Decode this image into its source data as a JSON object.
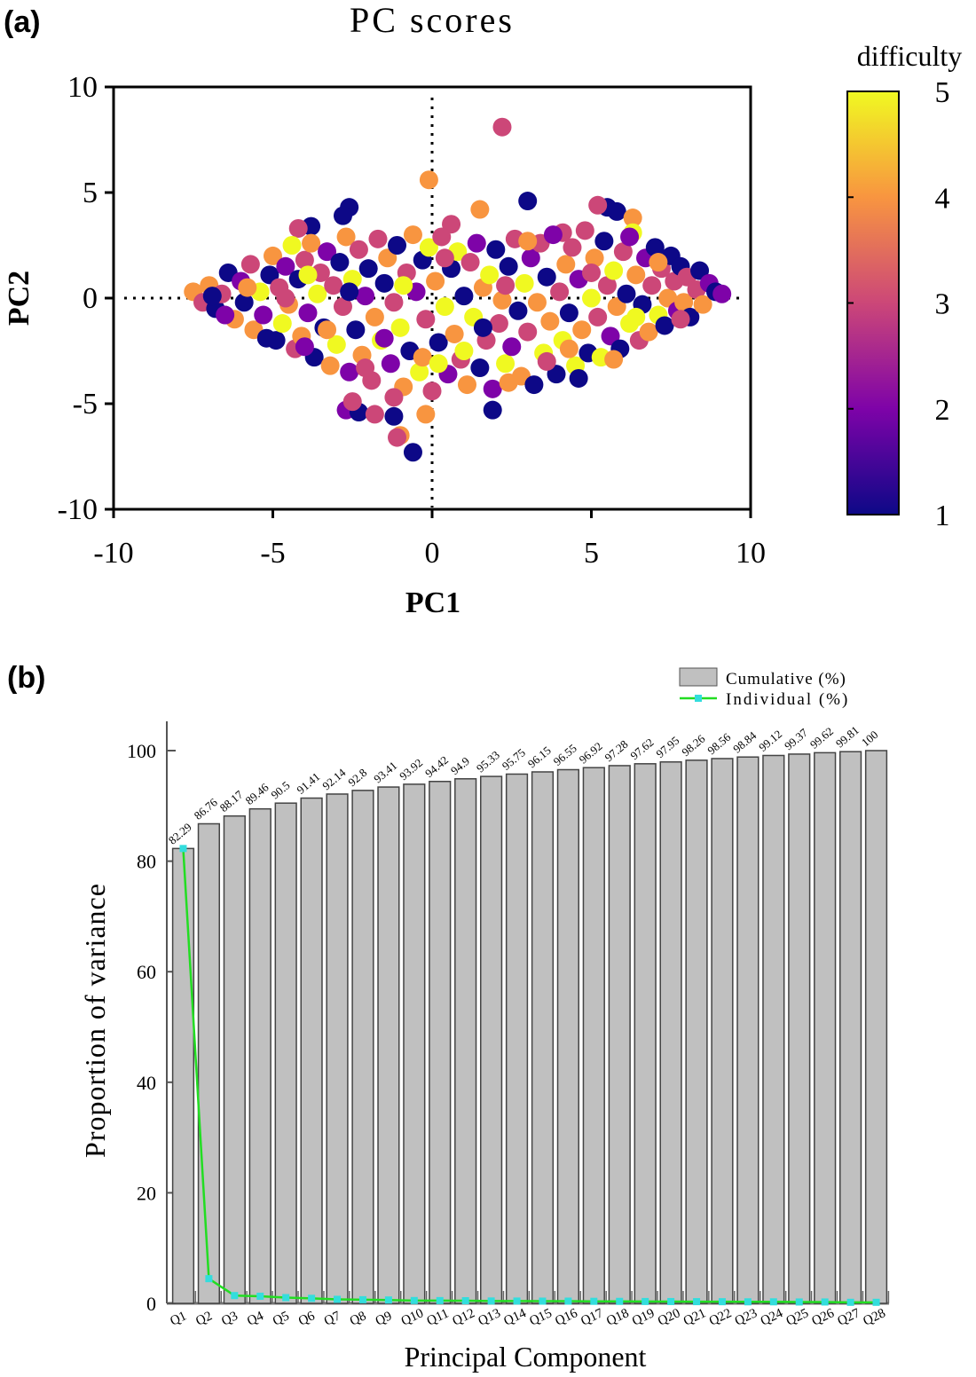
{
  "chart_data": [
    {
      "panel_label": "(a)",
      "type": "scatter",
      "title": "PC scores",
      "xlabel": "PC1",
      "ylabel": "PC2",
      "xlim": [
        -10,
        10
      ],
      "ylim": [
        -10,
        10
      ],
      "xticks": [
        "-10",
        "-5",
        "0",
        "5",
        "10"
      ],
      "yticks": [
        "10",
        "5",
        "0",
        "-5",
        "-10"
      ],
      "colorbar": {
        "label": "difficulty",
        "min": 1,
        "max": 5,
        "ticks": [
          "5",
          "4",
          "3",
          "2",
          "1"
        ],
        "colors": [
          "#0d0887",
          "#7e03a8",
          "#cc4778",
          "#f89540",
          "#f0f921"
        ]
      },
      "grid": false,
      "points": [
        [
          2.2,
          8.1,
          3
        ],
        [
          -0.1,
          5.6,
          4
        ],
        [
          3,
          4.6,
          1
        ],
        [
          -2.6,
          4.3,
          1
        ],
        [
          -2.8,
          3.9,
          1
        ],
        [
          5.5,
          4.3,
          1
        ],
        [
          5.8,
          4.1,
          1
        ],
        [
          6.3,
          3.8,
          4
        ],
        [
          5.2,
          4.4,
          3
        ],
        [
          1.5,
          4.2,
          4
        ],
        [
          0.6,
          3.5,
          3
        ],
        [
          -3.8,
          3.4,
          1
        ],
        [
          -4.2,
          3.3,
          3
        ],
        [
          4.1,
          3.1,
          3
        ],
        [
          -0.6,
          -7.3,
          1
        ],
        [
          -1,
          -6.5,
          4
        ],
        [
          -1.1,
          -6.6,
          3
        ],
        [
          -0.2,
          -5.5,
          4
        ],
        [
          1.9,
          -5.3,
          1
        ],
        [
          -2.7,
          -5.3,
          2
        ],
        [
          -2.3,
          -5.4,
          1
        ],
        [
          -1.8,
          -5.5,
          3
        ],
        [
          -1.2,
          -5.6,
          1
        ],
        [
          -2.5,
          -4.9,
          3
        ],
        [
          -7.5,
          0.3,
          4
        ],
        [
          -7.2,
          -0.2,
          3
        ],
        [
          -7,
          0.6,
          4
        ],
        [
          -6.8,
          -0.5,
          1
        ],
        [
          -6.6,
          0.2,
          3
        ],
        [
          -6.4,
          1.2,
          1
        ],
        [
          -6.2,
          -1,
          4
        ],
        [
          -6,
          0.8,
          2
        ],
        [
          -5.9,
          -0.2,
          1
        ],
        [
          -5.7,
          1.6,
          3
        ],
        [
          -5.6,
          -1.5,
          4
        ],
        [
          -5.4,
          0.3,
          5
        ],
        [
          -5.3,
          -0.8,
          2
        ],
        [
          -5.1,
          1.1,
          1
        ],
        [
          -5,
          2,
          4
        ],
        [
          -4.9,
          -2,
          1
        ],
        [
          -4.8,
          0.5,
          3
        ],
        [
          -4.7,
          -1.2,
          5
        ],
        [
          -4.6,
          1.5,
          2
        ],
        [
          -4.5,
          -0.3,
          4
        ],
        [
          -4.4,
          2.5,
          5
        ],
        [
          -4.3,
          -2.4,
          3
        ],
        [
          -4.2,
          0.9,
          1
        ],
        [
          -4.1,
          -1.8,
          4
        ],
        [
          -4,
          1.8,
          3
        ],
        [
          -3.9,
          -0.7,
          2
        ],
        [
          -3.8,
          2.6,
          4
        ],
        [
          -3.7,
          -2.8,
          1
        ],
        [
          -3.6,
          0.2,
          5
        ],
        [
          -3.5,
          1.2,
          3
        ],
        [
          -3.4,
          -1.4,
          1
        ],
        [
          -3.3,
          2.2,
          2
        ],
        [
          -3.2,
          -3.2,
          4
        ],
        [
          -3.1,
          0.6,
          3
        ],
        [
          -3,
          -2.2,
          5
        ],
        [
          -2.9,
          1.7,
          1
        ],
        [
          -2.8,
          -0.4,
          3
        ],
        [
          -2.7,
          2.9,
          4
        ],
        [
          -2.6,
          -3.5,
          2
        ],
        [
          -2.5,
          0.9,
          5
        ],
        [
          -2.4,
          -1.5,
          1
        ],
        [
          -2.3,
          2.3,
          3
        ],
        [
          -2.2,
          -2.7,
          4
        ],
        [
          -2.1,
          0.1,
          2
        ],
        [
          -2,
          1.4,
          1
        ],
        [
          -1.9,
          -3.9,
          3
        ],
        [
          -1.8,
          -0.9,
          4
        ],
        [
          -1.7,
          2.8,
          3
        ],
        [
          -1.6,
          -2,
          5
        ],
        [
          -1.5,
          0.7,
          1
        ],
        [
          -1.4,
          1.9,
          4
        ],
        [
          -1.3,
          -3.1,
          2
        ],
        [
          -1.2,
          -0.2,
          3
        ],
        [
          -1.1,
          2.5,
          1
        ],
        [
          -1,
          -1.4,
          5
        ],
        [
          -0.9,
          -4.2,
          4
        ],
        [
          -0.8,
          1.2,
          3
        ],
        [
          -0.7,
          -2.5,
          1
        ],
        [
          -0.6,
          3,
          4
        ],
        [
          -0.5,
          0.3,
          2
        ],
        [
          -0.4,
          -3.5,
          5
        ],
        [
          -0.3,
          1.8,
          1
        ],
        [
          -0.2,
          -1,
          3
        ],
        [
          -0.1,
          2.4,
          5
        ],
        [
          0,
          -4.4,
          3
        ],
        [
          0.1,
          0.8,
          4
        ],
        [
          0.2,
          -2.1,
          1
        ],
        [
          0.3,
          2.9,
          3
        ],
        [
          0.4,
          -0.4,
          5
        ],
        [
          0.5,
          -3.6,
          2
        ],
        [
          0.6,
          1.4,
          1
        ],
        [
          0.7,
          -1.7,
          4
        ],
        [
          0.8,
          2.2,
          5
        ],
        [
          0.9,
          -2.9,
          3
        ],
        [
          1,
          0.1,
          1
        ],
        [
          1.1,
          -4.1,
          4
        ],
        [
          1.2,
          1.7,
          3
        ],
        [
          1.3,
          -0.9,
          5
        ],
        [
          1.4,
          2.6,
          2
        ],
        [
          1.5,
          -3.3,
          1
        ],
        [
          1.6,
          0.5,
          4
        ],
        [
          1.7,
          -2,
          3
        ],
        [
          1.8,
          1.1,
          5
        ],
        [
          1.9,
          -4.3,
          2
        ],
        [
          2,
          2.3,
          1
        ],
        [
          2.1,
          -1.2,
          3
        ],
        [
          2.2,
          -0.1,
          4
        ],
        [
          2.3,
          -3.1,
          5
        ],
        [
          2.4,
          1.5,
          1
        ],
        [
          2.5,
          -2.3,
          2
        ],
        [
          2.6,
          2.8,
          3
        ],
        [
          2.7,
          -0.6,
          1
        ],
        [
          2.8,
          -3.7,
          4
        ],
        [
          2.9,
          0.7,
          5
        ],
        [
          3,
          -1.6,
          3
        ],
        [
          3.1,
          1.9,
          2
        ],
        [
          3.2,
          -4.1,
          1
        ],
        [
          3.3,
          -0.2,
          4
        ],
        [
          3.4,
          2.6,
          3
        ],
        [
          3.5,
          -2.6,
          5
        ],
        [
          3.6,
          1,
          1
        ],
        [
          3.7,
          -1.1,
          4
        ],
        [
          3.8,
          3,
          2
        ],
        [
          3.9,
          -3.6,
          1
        ],
        [
          4,
          0.3,
          3
        ],
        [
          4.1,
          -2,
          5
        ],
        [
          4.2,
          1.6,
          4
        ],
        [
          4.3,
          -0.7,
          1
        ],
        [
          4.4,
          2.4,
          3
        ],
        [
          4.5,
          -3.2,
          5
        ],
        [
          4.6,
          0.9,
          2
        ],
        [
          4.7,
          -1.5,
          4
        ],
        [
          4.8,
          3.2,
          3
        ],
        [
          4.9,
          -2.6,
          1
        ],
        [
          5,
          0,
          5
        ],
        [
          5.1,
          1.9,
          4
        ],
        [
          5.2,
          -0.9,
          3
        ],
        [
          5.3,
          -2.8,
          5
        ],
        [
          5.4,
          2.7,
          1
        ],
        [
          5.5,
          0.6,
          3
        ],
        [
          5.6,
          -1.8,
          2
        ],
        [
          5.7,
          1.3,
          5
        ],
        [
          5.8,
          -0.4,
          4
        ],
        [
          5.9,
          -2.4,
          1
        ],
        [
          6,
          2.2,
          3
        ],
        [
          6.1,
          0.2,
          1
        ],
        [
          6.2,
          -1.2,
          5
        ],
        [
          6.3,
          3.1,
          5
        ],
        [
          6.4,
          1.1,
          4
        ],
        [
          6.5,
          -2,
          3
        ],
        [
          6.6,
          -0.3,
          1
        ],
        [
          6.7,
          1.9,
          2
        ],
        [
          6.8,
          -1.6,
          4
        ],
        [
          6.9,
          0.6,
          3
        ],
        [
          7,
          2.4,
          1
        ],
        [
          7.1,
          -0.8,
          5
        ],
        [
          7.2,
          1.4,
          3
        ],
        [
          7.3,
          -1.3,
          1
        ],
        [
          7.4,
          0,
          4
        ],
        [
          7.5,
          2,
          1
        ],
        [
          7.6,
          0.8,
          3
        ],
        [
          7.7,
          -0.6,
          2
        ],
        [
          7.8,
          1.5,
          1
        ],
        [
          7.9,
          -0.2,
          4
        ],
        [
          8,
          1,
          3
        ],
        [
          8.1,
          -0.9,
          1
        ],
        [
          8.3,
          0.4,
          3
        ],
        [
          8.4,
          1.3,
          1
        ],
        [
          8.5,
          -0.3,
          4
        ],
        [
          8.7,
          0.7,
          2
        ],
        [
          8.9,
          0.3,
          1
        ],
        [
          9.1,
          0.2,
          2
        ],
        [
          -6.5,
          -0.8,
          2
        ],
        [
          -5.8,
          0.5,
          4
        ],
        [
          -5.2,
          -1.9,
          1
        ],
        [
          -4.6,
          0,
          3
        ],
        [
          -3.9,
          1.1,
          5
        ],
        [
          -3.3,
          -1.5,
          4
        ],
        [
          -2.6,
          0.3,
          1
        ],
        [
          -2.1,
          -3.3,
          3
        ],
        [
          -1.5,
          -1.9,
          2
        ],
        [
          -0.9,
          0.6,
          5
        ],
        [
          -0.3,
          -2.8,
          4
        ],
        [
          0.4,
          1.9,
          3
        ],
        [
          1,
          -2.5,
          5
        ],
        [
          1.6,
          -1.4,
          1
        ],
        [
          2.3,
          0.6,
          3
        ],
        [
          3,
          2.7,
          4
        ],
        [
          3.6,
          -3,
          3
        ],
        [
          4.3,
          -2.4,
          4
        ],
        [
          5,
          1.2,
          3
        ],
        [
          5.7,
          -2.9,
          4
        ],
        [
          6.4,
          -0.9,
          5
        ],
        [
          7.1,
          1.7,
          4
        ],
        [
          7.8,
          -1,
          3
        ],
        [
          -6.9,
          0.1,
          1
        ],
        [
          -4,
          -2.3,
          2
        ],
        [
          -1.2,
          -4.7,
          3
        ],
        [
          0.2,
          -3.1,
          5
        ],
        [
          2.4,
          -4,
          4
        ],
        [
          4.6,
          -3.8,
          1
        ],
        [
          6.2,
          2.9,
          2
        ]
      ]
    },
    {
      "panel_label": "(b)",
      "type": "bar",
      "xlabel": "Principal Component",
      "ylabel": "Proportion of variance",
      "ylim": [
        0,
        105
      ],
      "yticks": [
        "0",
        "20",
        "40",
        "60",
        "80",
        "100"
      ],
      "categories": [
        "Q1",
        "Q2",
        "Q3",
        "Q4",
        "Q5",
        "Q6",
        "Q7",
        "Q8",
        "Q9",
        "Q10",
        "Q11",
        "Q12",
        "Q13",
        "Q14",
        "Q15",
        "Q16",
        "Q17",
        "Q18",
        "Q19",
        "Q20",
        "Q21",
        "Q22",
        "Q23",
        "Q24",
        "Q25",
        "Q26",
        "Q27",
        "Q28"
      ],
      "legend_position": "top-right",
      "series": [
        {
          "name": "Cumulative (%)",
          "type": "bar",
          "color": "#c0c0c0",
          "values": [
            82.29,
            86.76,
            88.17,
            89.46,
            90.5,
            91.41,
            92.14,
            92.8,
            93.41,
            93.92,
            94.42,
            94.9,
            95.33,
            95.75,
            96.15,
            96.55,
            96.92,
            97.28,
            97.62,
            97.95,
            98.26,
            98.56,
            98.84,
            99.12,
            99.37,
            99.62,
            99.81,
            100
          ],
          "labels": [
            "82.29",
            "86.76",
            "88.17",
            "89.46",
            "90.5",
            "91.41",
            "92.14",
            "92.8",
            "93.41",
            "93.92",
            "94.42",
            "94.9",
            "95.33",
            "95.75",
            "96.15",
            "96.55",
            "96.92",
            "97.28",
            "97.62",
            "97.95",
            "98.26",
            "98.56",
            "98.84",
            "99.12",
            "99.37",
            "99.62",
            "99.81",
            "100"
          ]
        },
        {
          "name": "Individual (%)",
          "type": "line",
          "color": "#22dd22",
          "marker_color": "#33dddd",
          "values": [
            82.29,
            4.47,
            1.41,
            1.29,
            1.04,
            0.91,
            0.73,
            0.66,
            0.61,
            0.51,
            0.5,
            0.48,
            0.43,
            0.42,
            0.4,
            0.4,
            0.37,
            0.36,
            0.34,
            0.33,
            0.31,
            0.3,
            0.28,
            0.28,
            0.25,
            0.25,
            0.19,
            0.19
          ]
        }
      ]
    }
  ]
}
